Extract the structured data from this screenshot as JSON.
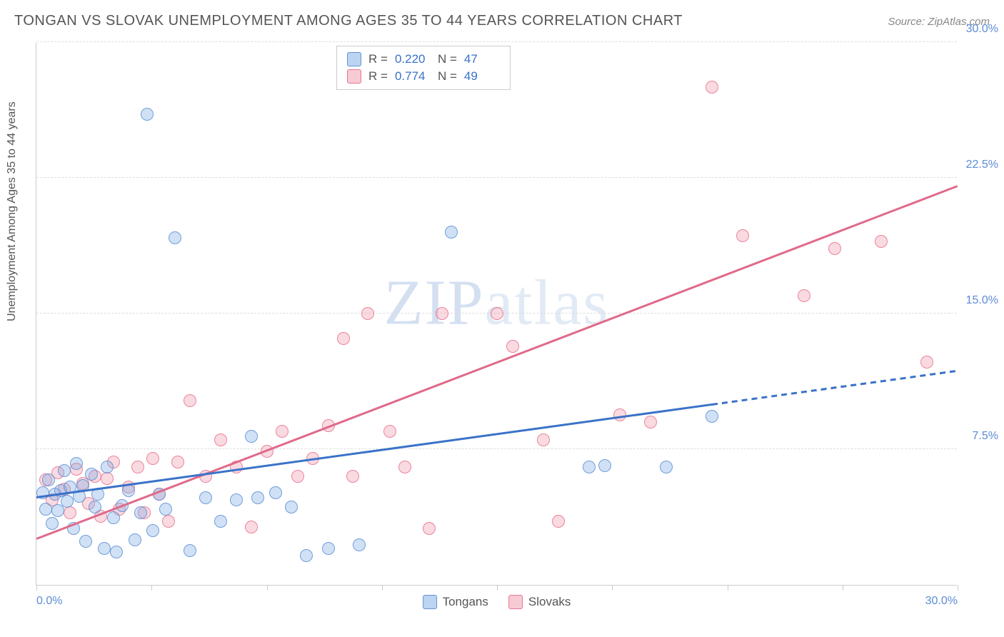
{
  "title": "TONGAN VS SLOVAK UNEMPLOYMENT AMONG AGES 35 TO 44 YEARS CORRELATION CHART",
  "source": "Source: ZipAtlas.com",
  "y_axis_label": "Unemployment Among Ages 35 to 44 years",
  "watermark": {
    "part1": "ZIP",
    "part2": "atlas"
  },
  "chart": {
    "type": "scatter",
    "xlim": [
      0,
      30
    ],
    "ylim": [
      0,
      30
    ],
    "x_ticks": [
      0,
      3.75,
      7.5,
      11.25,
      15,
      18.75,
      22.5,
      26.25,
      30
    ],
    "x_tick_labels": {
      "0": "0.0%",
      "30": "30.0%"
    },
    "y_gridlines": [
      7.5,
      15,
      22.5,
      30
    ],
    "y_tick_labels": {
      "7.5": "7.5%",
      "15": "15.0%",
      "22.5": "22.5%",
      "30": "30.0%"
    },
    "background_color": "#ffffff",
    "grid_color": "#dddddd",
    "axis_color": "#cccccc",
    "tick_label_color": "#5b8cd6",
    "marker_radius": 9,
    "series": {
      "tongans": {
        "label": "Tongans",
        "fill": "rgba(120,170,230,0.35)",
        "stroke": "rgba(90,140,210,0.8)",
        "trend_color": "#3a72c8",
        "trend": {
          "x1": 0,
          "y1": 4.8,
          "x2_solid": 22,
          "x2": 30,
          "y2": 11.8
        },
        "stats": {
          "R": "0.220",
          "N": "47"
        },
        "points": [
          [
            0.2,
            5.1
          ],
          [
            0.3,
            4.2
          ],
          [
            0.4,
            5.8
          ],
          [
            0.5,
            3.4
          ],
          [
            0.6,
            5.0
          ],
          [
            0.7,
            4.1
          ],
          [
            0.8,
            5.2
          ],
          [
            0.9,
            6.3
          ],
          [
            1.0,
            4.6
          ],
          [
            1.1,
            5.4
          ],
          [
            1.2,
            3.1
          ],
          [
            1.3,
            6.7
          ],
          [
            1.4,
            4.9
          ],
          [
            1.5,
            5.5
          ],
          [
            1.6,
            2.4
          ],
          [
            1.8,
            6.1
          ],
          [
            1.9,
            4.3
          ],
          [
            2.0,
            5.0
          ],
          [
            2.2,
            2.0
          ],
          [
            2.3,
            6.5
          ],
          [
            2.5,
            3.7
          ],
          [
            2.6,
            1.8
          ],
          [
            2.8,
            4.4
          ],
          [
            3.0,
            5.2
          ],
          [
            3.2,
            2.5
          ],
          [
            3.4,
            4.0
          ],
          [
            3.6,
            26.0
          ],
          [
            3.8,
            3.0
          ],
          [
            4.0,
            5.0
          ],
          [
            4.2,
            4.2
          ],
          [
            4.5,
            19.2
          ],
          [
            5.0,
            1.9
          ],
          [
            5.5,
            4.8
          ],
          [
            6.0,
            3.5
          ],
          [
            6.5,
            4.7
          ],
          [
            7.0,
            8.2
          ],
          [
            7.2,
            4.8
          ],
          [
            7.8,
            5.1
          ],
          [
            8.3,
            4.3
          ],
          [
            8.8,
            1.6
          ],
          [
            9.5,
            2.0
          ],
          [
            10.5,
            2.2
          ],
          [
            13.5,
            19.5
          ],
          [
            18.0,
            6.5
          ],
          [
            18.5,
            6.6
          ],
          [
            20.5,
            6.5
          ],
          [
            22.0,
            9.3
          ]
        ]
      },
      "slovaks": {
        "label": "Slovaks",
        "fill": "rgba(240,150,170,0.35)",
        "stroke": "rgba(230,110,140,0.8)",
        "trend_color": "#e06a8a",
        "trend": {
          "x1": 0,
          "y1": 2.5,
          "x2": 30,
          "y2": 22.0
        },
        "stats": {
          "R": "0.774",
          "N": "49"
        },
        "points": [
          [
            0.3,
            5.8
          ],
          [
            0.5,
            4.7
          ],
          [
            0.7,
            6.2
          ],
          [
            0.9,
            5.3
          ],
          [
            1.1,
            4.0
          ],
          [
            1.3,
            6.4
          ],
          [
            1.5,
            5.6
          ],
          [
            1.7,
            4.5
          ],
          [
            1.9,
            6.0
          ],
          [
            2.1,
            3.8
          ],
          [
            2.3,
            5.9
          ],
          [
            2.5,
            6.8
          ],
          [
            2.7,
            4.2
          ],
          [
            3.0,
            5.4
          ],
          [
            3.3,
            6.5
          ],
          [
            3.5,
            4.0
          ],
          [
            3.8,
            7.0
          ],
          [
            4.0,
            5.0
          ],
          [
            4.3,
            3.5
          ],
          [
            4.6,
            6.8
          ],
          [
            5.0,
            10.2
          ],
          [
            5.5,
            6.0
          ],
          [
            6.0,
            8.0
          ],
          [
            6.5,
            6.5
          ],
          [
            7.0,
            3.2
          ],
          [
            7.5,
            7.4
          ],
          [
            8.0,
            8.5
          ],
          [
            8.5,
            6.0
          ],
          [
            9.0,
            7.0
          ],
          [
            9.5,
            8.8
          ],
          [
            10.0,
            13.6
          ],
          [
            10.3,
            6.0
          ],
          [
            10.8,
            15.0
          ],
          [
            11.5,
            8.5
          ],
          [
            12.0,
            6.5
          ],
          [
            12.8,
            3.1
          ],
          [
            13.2,
            15.0
          ],
          [
            15.0,
            15.0
          ],
          [
            15.5,
            13.2
          ],
          [
            16.5,
            8.0
          ],
          [
            17.0,
            3.5
          ],
          [
            19.0,
            9.4
          ],
          [
            20.0,
            9.0
          ],
          [
            22.0,
            27.5
          ],
          [
            23.0,
            19.3
          ],
          [
            25.0,
            16.0
          ],
          [
            26.0,
            18.6
          ],
          [
            27.5,
            19.0
          ],
          [
            29.0,
            12.3
          ]
        ]
      }
    }
  },
  "stats_box": {
    "rows": [
      {
        "series": "tongans",
        "R_label": "R =",
        "N_label": "N ="
      },
      {
        "series": "slovaks",
        "R_label": "R =",
        "N_label": "N ="
      }
    ]
  }
}
